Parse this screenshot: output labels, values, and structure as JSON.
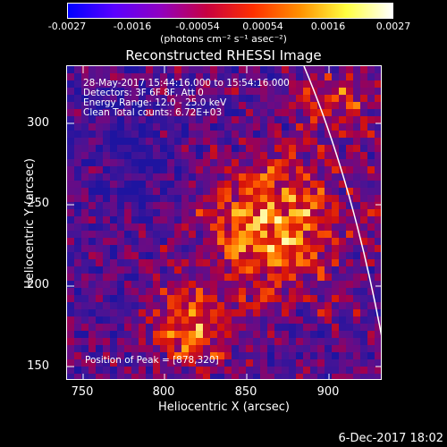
{
  "colorbar": {
    "ticks": [
      "-0.0027",
      "-0.0016",
      "-0.00054",
      "0.00054",
      "0.0016",
      "0.0027"
    ],
    "units": "(photons cm⁻² s⁻¹ asec⁻²)",
    "colors": [
      "#0000ff",
      "#5a00ff",
      "#9000c0",
      "#c80040",
      "#ff3000",
      "#ff9000",
      "#ffff40",
      "#ffffff"
    ]
  },
  "title": "Reconstructed RHESSI Image",
  "info": {
    "line1": "28-May-2017 15:44:16.000 to 15:54:16.000",
    "line2": "Detectors: 3F 6F 8F, Att 0",
    "line3": "Energy Range: 12.0 - 25.0 keV",
    "line4": "Clean     Total counts: 6.72E+03"
  },
  "peak_label": "Position of Peak = [878,320]",
  "axes": {
    "xlabel": "Heliocentric X (arcsec)",
    "ylabel": "Heliocentric Y (arcsec)",
    "xticks": [
      "750",
      "800",
      "850",
      "900"
    ],
    "yticks": [
      "300",
      "250",
      "200",
      "150"
    ],
    "xlim": [
      740,
      933
    ],
    "ylim": [
      140,
      335
    ]
  },
  "limb_color": "#ffffff",
  "footer_date": "6-Dec-2017 18:02"
}
